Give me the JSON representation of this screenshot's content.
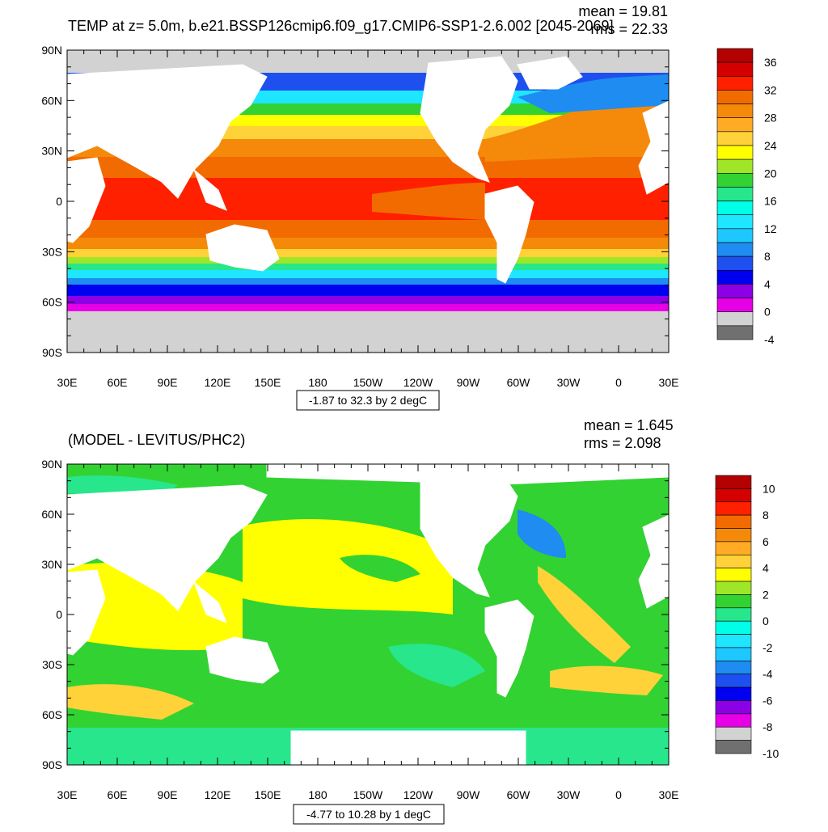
{
  "panels": [
    {
      "title": "TEMP at z=   5.0m, b.e21.BSSP126cmip6.f09_g17.CMIP6-SSP1-2.6.002 [2045-2069]",
      "mean_label": "mean = 19.81",
      "rms_label": "rms = 22.33",
      "range_label": "-1.87 to 32.3 by 2 degC",
      "colorbar": {
        "labels": [
          "36",
          "32",
          "28",
          "24",
          "20",
          "16",
          "12",
          "8",
          "4",
          "0",
          "-4"
        ],
        "colors": [
          "#b30000",
          "#d40000",
          "#ff2000",
          "#f26b00",
          "#f58a0a",
          "#ffab25",
          "#ffd23a",
          "#ffff00",
          "#a0e628",
          "#32d232",
          "#28e68c",
          "#00ffe6",
          "#1ee6ff",
          "#1ec8ff",
          "#1e8cf0",
          "#1e50f0",
          "#0000f0",
          "#8c00e6",
          "#e600e6",
          "#d2d2d2",
          "#707070"
        ]
      },
      "field": "model"
    },
    {
      "title": "(MODEL - LEVITUS/PHC2)",
      "mean_label": "mean = 1.645",
      "rms_label": "rms = 2.098",
      "range_label": "-4.77 to 10.28 by 1 degC",
      "colorbar": {
        "labels": [
          "10",
          "8",
          "6",
          "4",
          "2",
          "0",
          "-2",
          "-4",
          "-6",
          "-8",
          "-10"
        ],
        "colors": [
          "#b30000",
          "#d40000",
          "#ff2000",
          "#f26b00",
          "#f58a0a",
          "#ffab25",
          "#ffd23a",
          "#ffff00",
          "#a0e628",
          "#32d232",
          "#28e68c",
          "#00ffe6",
          "#1ee6ff",
          "#1ec8ff",
          "#1e8cf0",
          "#1e50f0",
          "#0000f0",
          "#8c00e6",
          "#e600e6",
          "#d2d2d2",
          "#707070"
        ]
      },
      "field": "diff"
    }
  ],
  "lat_labels": [
    "90N",
    "60N",
    "30N",
    "0",
    "30S",
    "60S",
    "90S"
  ],
  "lon_labels": [
    "30E",
    "60E",
    "90E",
    "120E",
    "150E",
    "180",
    "150W",
    "120W",
    "90W",
    "60W",
    "30W",
    "0",
    "30E"
  ]
}
